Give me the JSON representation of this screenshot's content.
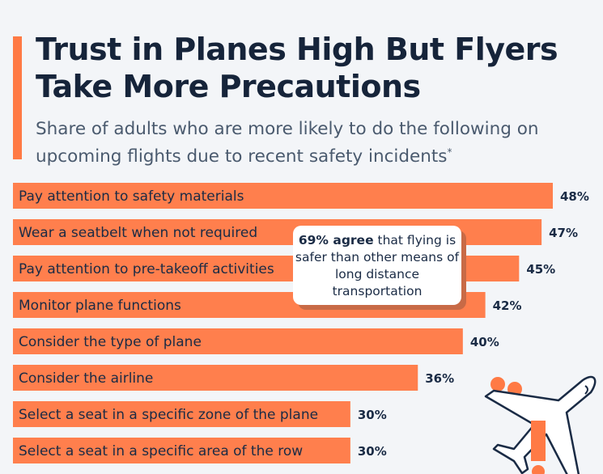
{
  "title": "Trust in Planes High But Flyers Take More Precautions",
  "subtitle": "Share of adults who are more likely to do the following on upcoming flights due to recent safety incidents",
  "subtitle_mark": "*",
  "callout": {
    "bold": "69% agree",
    "rest": " that flying is safer than other means of long distance transportation"
  },
  "icon": "airplane-warning-icon",
  "colors": {
    "bar": "#ff7f4d",
    "text": "#1a2b45",
    "accent": "#ff7a45"
  },
  "chart_data": {
    "type": "bar",
    "orientation": "horizontal",
    "unit": "%",
    "categories": [
      "Pay attention to safety materials",
      "Wear a seatbelt when not required",
      "Pay attention to pre-takeoff activities",
      "Monitor plane functions",
      "Consider the type of plane",
      "Consider the airline",
      "Select a seat in a specific zone of the plane",
      "Select a seat in a specific area of the row"
    ],
    "values": [
      48,
      47,
      45,
      42,
      40,
      36,
      30,
      30
    ],
    "value_labels": [
      "48%",
      "47%",
      "45%",
      "42%",
      "40%",
      "36%",
      "30%",
      "30%"
    ],
    "xlim": [
      0,
      48
    ],
    "grid": false
  }
}
